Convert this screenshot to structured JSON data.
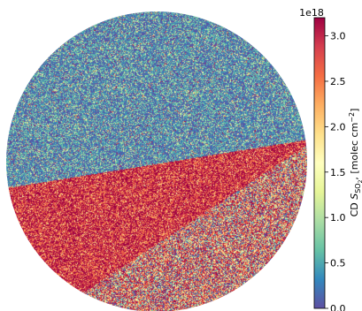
{
  "chart_data": {
    "type": "heatmap",
    "title": "",
    "xlabel": "",
    "ylabel": "",
    "colorbar": {
      "label_main": "CD ",
      "label_sym": "S",
      "label_sub": "SO",
      "label_sub2": "2",
      "label_rest": ", [molec cm",
      "label_sup": "−2",
      "label_close": "]",
      "offset_text": "1e18",
      "range": [
        0.0,
        3.2
      ],
      "ticks": [
        "0.0",
        "0.5",
        "1.0",
        "1.5",
        "2.0",
        "2.5",
        "3.0"
      ],
      "tick_values": [
        0.0,
        0.5,
        1.0,
        1.5,
        2.0,
        2.5,
        3.0
      ],
      "colormap": "Spectral_r",
      "colormap_stops": [
        "#5e4fa2",
        "#3288bd",
        "#66c2a5",
        "#abdda4",
        "#e6f598",
        "#ffffbf",
        "#fee08b",
        "#fdae61",
        "#f46d43",
        "#d53e4f",
        "#9e0142"
      ]
    },
    "field_description": "Noisy column-density field inside a circular region. Upper half: low values (~0.3e18) with green/yellow speckle. A diagonal red band of high values (~3.0e18) runs from the lower-left toward the right edge just below centre, bounded below by a straight edge rising from bottom-centre to right. Lower-right region: mixed medium/high values with strong noise.",
    "regions": [
      {
        "name": "upper-low",
        "mean": 0.35,
        "noise": 0.45
      },
      {
        "name": "red-band",
        "mean": 2.9,
        "noise": 0.5
      },
      {
        "name": "lower-right-mixed",
        "mean": 1.2,
        "noise": 1.3
      }
    ]
  }
}
